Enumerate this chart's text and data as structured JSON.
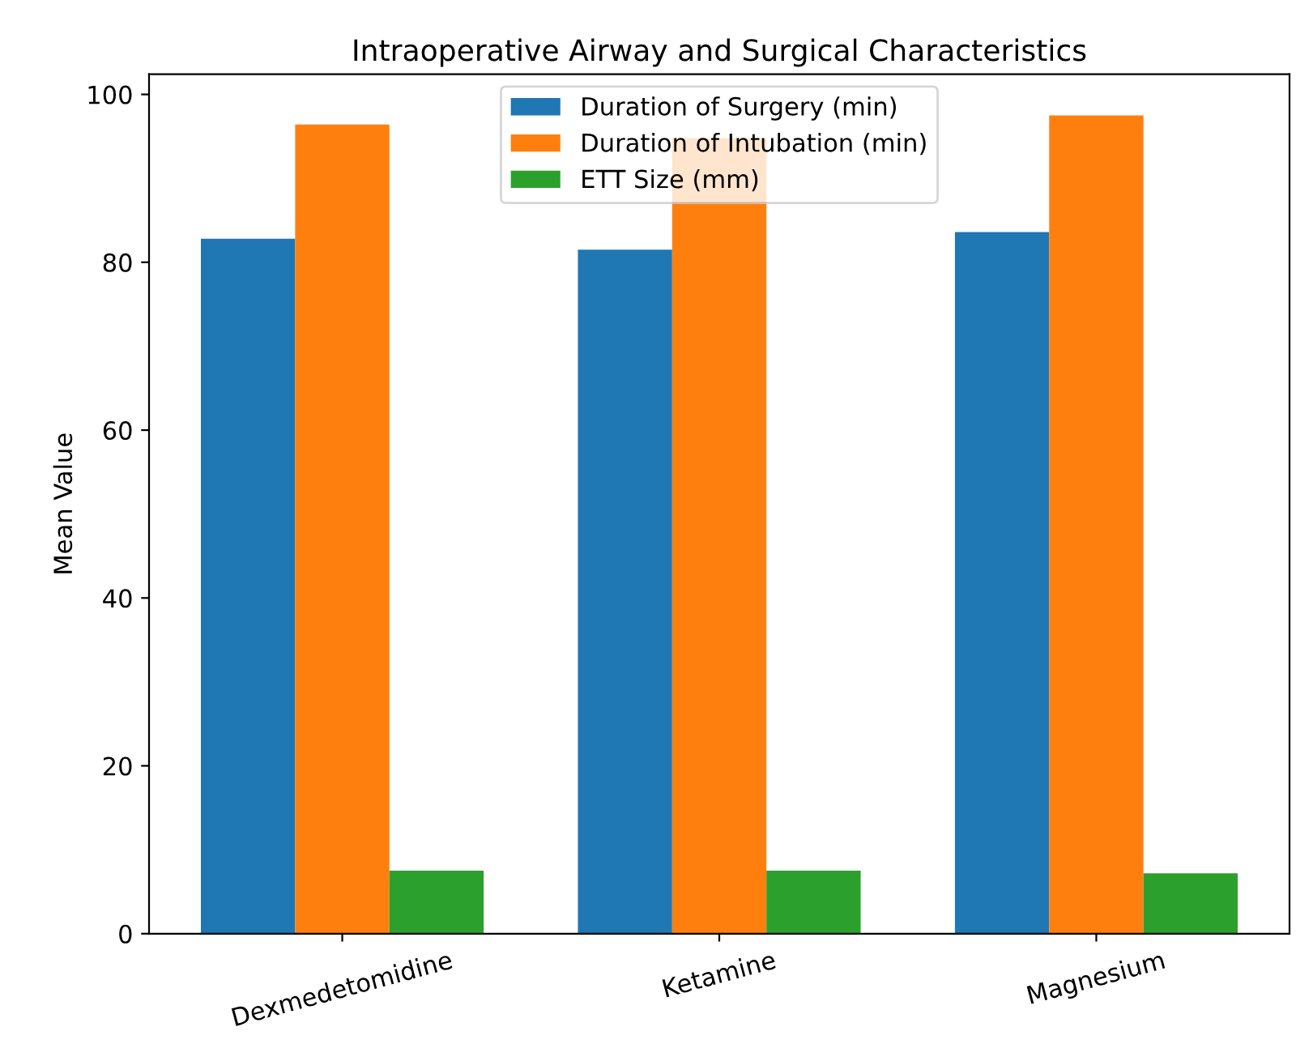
{
  "chart_data": {
    "type": "bar",
    "title": "Intraoperative Airway and Surgical Characteristics",
    "ylabel": "Mean Value",
    "categories": [
      "Dexmedetomidine",
      "Ketamine",
      "Magnesium"
    ],
    "series": [
      {
        "name": "Duration of Surgery (min)",
        "color": "#1f77b4",
        "values": [
          82.8,
          81.5,
          83.6
        ]
      },
      {
        "name": "Duration of Intubation (min)",
        "color": "#ff7f0e",
        "values": [
          96.4,
          94.8,
          97.5
        ]
      },
      {
        "name": "ETT Size (mm)",
        "color": "#2ca02c",
        "values": [
          7.5,
          7.5,
          7.2
        ]
      }
    ],
    "ylim": [
      0,
      102.4
    ],
    "yticks": [
      0,
      20,
      40,
      60,
      80,
      100
    ],
    "grid": false,
    "legend": "top"
  }
}
